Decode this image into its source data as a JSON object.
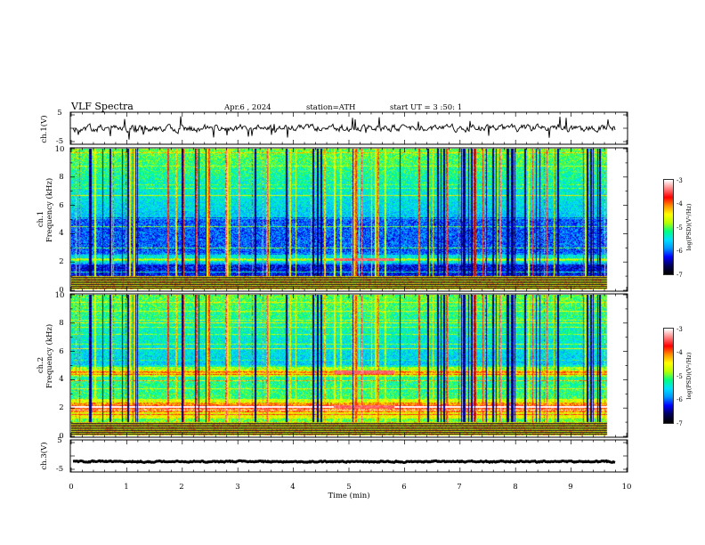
{
  "header": {
    "title": "VLF  Spectra",
    "date": "Apr.6  , 2024",
    "station": "station=ATH",
    "start_ut": "start  UT  =   3  :50: 1"
  },
  "colors": {
    "background": "#ffffff",
    "frame": "#000000",
    "waveform": "#000000",
    "colormap": [
      "#000000",
      "#00005a",
      "#0000ff",
      "#0096ff",
      "#00e0ff",
      "#00ff80",
      "#b8ff00",
      "#ffff00",
      "#ff9000",
      "#ff0000",
      "#ff8080",
      "#ffffff"
    ]
  },
  "chart_data": [
    {
      "type": "line",
      "panel": "ch1-waveform",
      "ylabel": "ch.1(V)",
      "xlim": [
        0,
        10
      ],
      "ylim": [
        -5,
        5
      ],
      "yticks": [
        "5",
        "-5"
      ],
      "data_end_min": 9.8,
      "description_values": {
        "baseline_volts": 0,
        "noise_amplitude_volts": 1.0
      }
    },
    {
      "type": "heatmap",
      "panel": "ch1-spectrogram",
      "ylabel_channel": "ch.1",
      "ylabel": "Frequency  (kHz)",
      "xlim": [
        0,
        10
      ],
      "ylim": [
        0,
        10
      ],
      "yticks": [
        "0",
        "2",
        "4",
        "6",
        "8",
        "10"
      ],
      "data_end_min": 9.8,
      "colorbar": {
        "label": "log(PSD)(V²/Hz)",
        "range": [
          -7,
          -3
        ],
        "ticks": [
          "-3",
          "-4",
          "-5",
          "-6",
          "-7"
        ]
      },
      "features": {
        "strong_band_khz": 2.1,
        "bright_burst_minutes": [
          4.8,
          5.9
        ]
      }
    },
    {
      "type": "heatmap",
      "panel": "ch2-spectrogram",
      "ylabel_channel": "ch.2",
      "ylabel": "Frequency  (kHz)",
      "xlim": [
        0,
        10
      ],
      "ylim": [
        0,
        10
      ],
      "yticks": [
        "0",
        "2",
        "4",
        "6",
        "8",
        "10"
      ],
      "data_end_min": 9.8,
      "colorbar": {
        "label": "log(PSD)(V²/Hz)",
        "range": [
          -7,
          -3
        ],
        "ticks": [
          "-3",
          "-4",
          "-5",
          "-6",
          "-7"
        ]
      },
      "features": {
        "strong_bands_khz": [
          2.0,
          4.5
        ],
        "bright_burst_minutes": [
          4.8,
          5.9
        ]
      }
    },
    {
      "type": "line",
      "panel": "ch3-waveform",
      "ylabel": "ch.3(V)",
      "xlabel": "Time  (min)",
      "xlim": [
        0,
        10
      ],
      "ylim": [
        -5,
        5
      ],
      "yticks": [
        "5",
        "-5"
      ],
      "xticks": [
        "0",
        "1",
        "2",
        "3",
        "4",
        "5",
        "6",
        "7",
        "8",
        "9",
        "10"
      ],
      "data_end_min": 9.8,
      "description_values": {
        "baseline_volts": -2.0,
        "noise_amplitude_volts": 0.2
      }
    }
  ]
}
